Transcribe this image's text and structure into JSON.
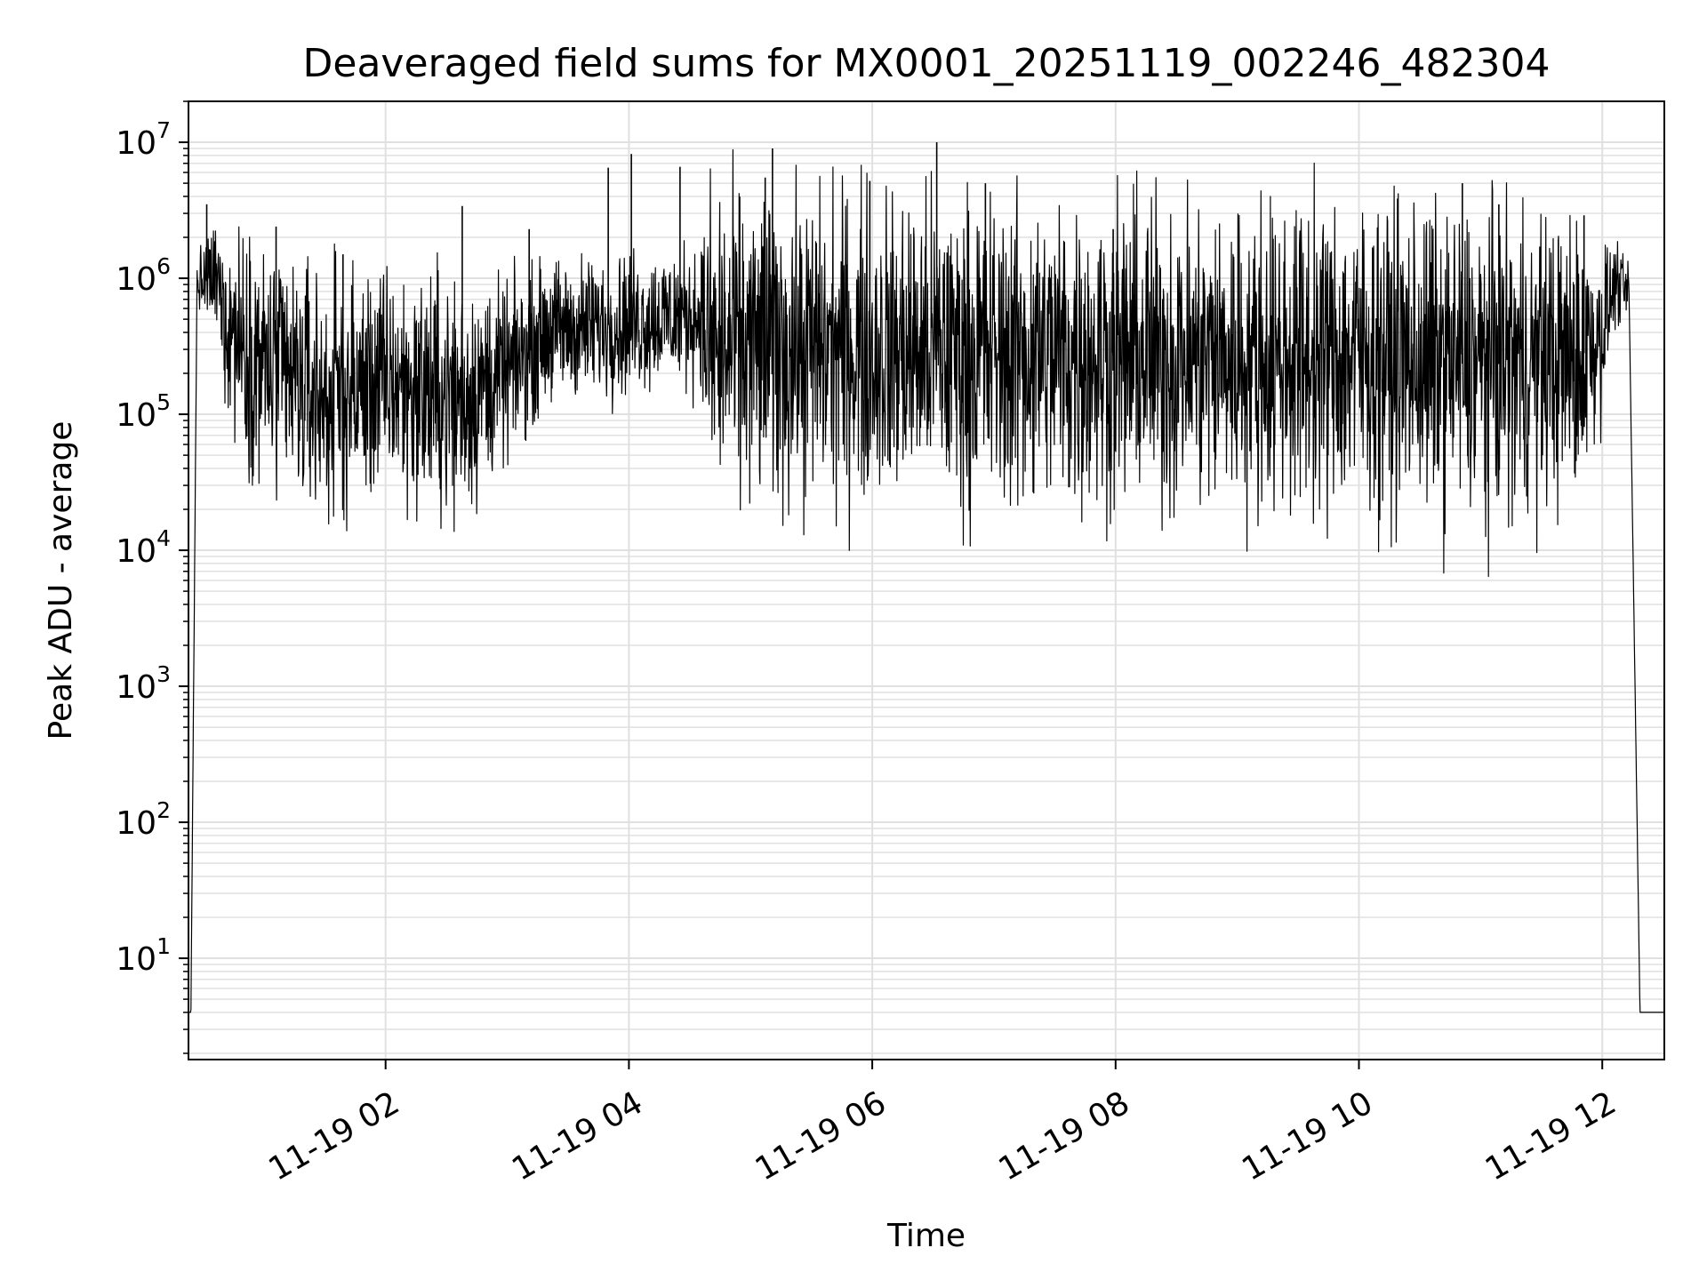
{
  "chart_data": {
    "type": "line",
    "title": "Deaveraged field sums for MX0001_20251119_002246_482304",
    "xlabel": "Time",
    "ylabel": "Peak ADU - average",
    "yscale": "log",
    "ylim": [
      1.8,
      20000000
    ],
    "xlim_hours": [
      0.38,
      12.51
    ],
    "grid": true,
    "legend": "none",
    "line_color": "#000000",
    "grid_color": "#e0e0e0",
    "x_ticks": [
      {
        "hour": 2,
        "label": "11-19 02"
      },
      {
        "hour": 4,
        "label": "11-19 04"
      },
      {
        "hour": 6,
        "label": "11-19 06"
      },
      {
        "hour": 8,
        "label": "11-19 08"
      },
      {
        "hour": 10,
        "label": "11-19 10"
      },
      {
        "hour": 12,
        "label": "11-19 12"
      }
    ],
    "y_ticks": [
      {
        "value": 10,
        "base": "10",
        "exp": "1"
      },
      {
        "value": 100,
        "base": "10",
        "exp": "2"
      },
      {
        "value": 1000,
        "base": "10",
        "exp": "3"
      },
      {
        "value": 10000,
        "base": "10",
        "exp": "4"
      },
      {
        "value": 100000,
        "base": "10",
        "exp": "5"
      },
      {
        "value": 1000000,
        "base": "10",
        "exp": "6"
      },
      {
        "value": 10000000,
        "base": "10",
        "exp": "7"
      }
    ],
    "series": [
      {
        "name": "field sums",
        "envelope": {
          "hours": [
            0.45,
            0.6,
            0.7,
            1.0,
            1.5,
            2.0,
            2.6,
            3.0,
            3.3,
            3.8,
            4.2,
            4.6,
            4.65,
            5.0,
            6.0,
            7.0,
            8.0,
            9.0,
            10.0,
            11.0,
            11.8,
            12.0,
            12.1,
            12.2
          ],
          "center": [
            900000,
            1000000,
            500000,
            220000,
            130000,
            170000,
            130000,
            200000,
            400000,
            450000,
            500000,
            550000,
            300000,
            300000,
            300000,
            280000,
            270000,
            260000,
            270000,
            230000,
            250000,
            400000,
            900000,
            800000
          ],
          "spread": [
            0.1,
            0.2,
            0.35,
            0.45,
            0.45,
            0.4,
            0.45,
            0.3,
            0.25,
            0.25,
            0.25,
            0.25,
            0.55,
            0.55,
            0.55,
            0.55,
            0.55,
            0.55,
            0.55,
            0.55,
            0.5,
            0.3,
            0.15,
            0.1
          ],
          "floor_value": 4,
          "rise": {
            "start": 0.4,
            "end": 0.45
          },
          "fall": {
            "start": 12.22,
            "end": 12.31
          }
        },
        "spikes": [
          {
            "hour": 0.53,
            "value": 3500000
          },
          {
            "hour": 1.1,
            "value": 2400000
          },
          {
            "hour": 1.65,
            "value": 1500000
          },
          {
            "hour": 2.63,
            "value": 3400000
          },
          {
            "hour": 3.18,
            "value": 2300000
          },
          {
            "hour": 3.83,
            "value": 6500000
          },
          {
            "hour": 4.02,
            "value": 8200000
          },
          {
            "hour": 4.42,
            "value": 6600000
          },
          {
            "hour": 5.12,
            "value": 5500000
          },
          {
            "hour": 5.18,
            "value": 9000000
          },
          {
            "hour": 5.98,
            "value": 5200000
          },
          {
            "hour": 6.53,
            "value": 10000000
          },
          {
            "hour": 6.93,
            "value": 5000000
          },
          {
            "hour": 7.98,
            "value": 2300000
          },
          {
            "hour": 10.85,
            "value": 5000000
          },
          {
            "hour": 11.15,
            "value": 3500000
          },
          {
            "hour": 11.85,
            "value": 2900000
          }
        ]
      }
    ]
  }
}
